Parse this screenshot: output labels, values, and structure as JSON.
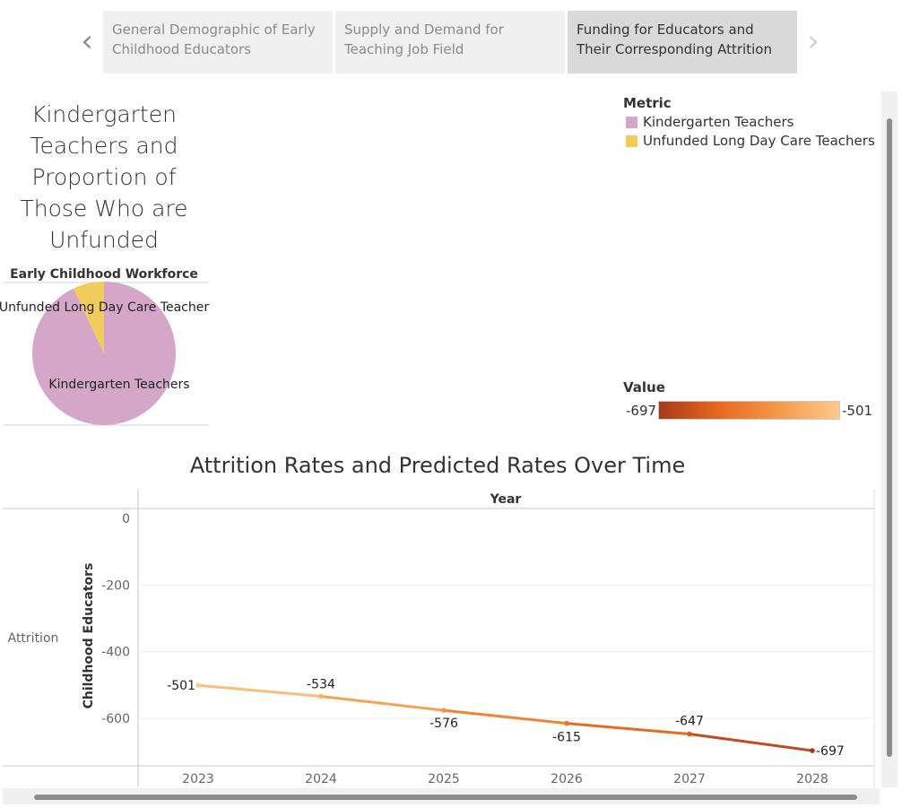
{
  "story_nav": {
    "tabs": [
      {
        "label": "General Demographic of Early Childhood Educators"
      },
      {
        "label": "Supply and Demand for Teaching Job Field"
      },
      {
        "label": "Funding for Educators and Their Corresponding Attrition"
      }
    ],
    "active_index": 2,
    "prev_icon": "chevron-left-icon",
    "next_icon": "chevron-right-icon"
  },
  "pie_section": {
    "title": "Kindergarten Teachers and Proportion of Those Who are Unfunded",
    "header": "Early Childhood Workforce"
  },
  "legend": {
    "title": "Metric",
    "items": [
      {
        "label": "Kindergarten Teachers",
        "color": "#d4a6c8"
      },
      {
        "label": "Unfunded Long Day Care Teachers",
        "color": "#f1cc5c"
      }
    ]
  },
  "color_legend": {
    "title": "Value",
    "min_label": "-697",
    "max_label": "-501",
    "gradient": [
      "#a63a1c",
      "#e8681f",
      "#f59a4a",
      "#fdc98b"
    ]
  },
  "line_section": {
    "title": "Attrition Rates and Predicted Rates Over Time",
    "column_header": "Year",
    "row_label": "Attrition",
    "y_axis_title": "Childhood Educators"
  },
  "chart_data": [
    {
      "type": "pie",
      "title": "Kindergarten Teachers and Proportion of Those Who are Unfunded",
      "header": "Early Childhood Workforce",
      "slices": [
        {
          "label": "Kindergarten Teachers",
          "value": 93,
          "color": "#d4a6c8"
        },
        {
          "label": "Unfunded Long Day Care Teacher",
          "value": 7,
          "color": "#f1cc5c"
        }
      ]
    },
    {
      "type": "line",
      "title": "Attrition Rates and Predicted Rates Over Time",
      "xlabel": "Year",
      "ylabel": "Childhood Educators",
      "x": [
        2023,
        2024,
        2025,
        2026,
        2027,
        2028
      ],
      "values": [
        -501,
        -534,
        -576,
        -615,
        -647,
        -697
      ],
      "data_labels": [
        "-501",
        "-534",
        "-576",
        "-615",
        "-647",
        "-697"
      ],
      "y_ticks": [
        0,
        -200,
        -400,
        -600
      ],
      "ylim": [
        -720,
        0
      ],
      "grid": true
    }
  ]
}
